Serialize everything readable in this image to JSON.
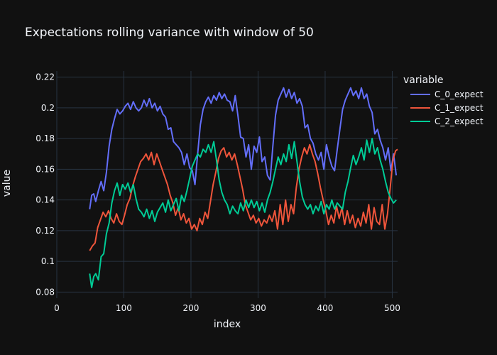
{
  "chart_data": {
    "type": "line",
    "title": "Expectations rolling variance with window of 50",
    "xlabel": "index",
    "ylabel": "value",
    "xlim": [
      0,
      508
    ],
    "ylim": [
      0.076,
      0.224
    ],
    "x_ticks": [
      0,
      100,
      200,
      300,
      400,
      500
    ],
    "y_ticks": [
      0.08,
      0.1,
      0.12,
      0.14,
      0.16,
      0.18,
      0.2,
      0.22
    ],
    "grid": true,
    "legend": {
      "title": "variable",
      "placement": "top-right",
      "entries": [
        "C_0_expect",
        "C_1_expect",
        "C_2_expect"
      ]
    },
    "colors": [
      "#636efa",
      "#ef553b",
      "#00cc96"
    ],
    "background": "#111111",
    "series": [
      {
        "name": "C_0_expect",
        "x": [
          49,
          52,
          55,
          58,
          62,
          66,
          70,
          74,
          78,
          82,
          86,
          90,
          94,
          98,
          102,
          106,
          110,
          114,
          118,
          122,
          126,
          130,
          134,
          138,
          142,
          146,
          150,
          154,
          158,
          162,
          166,
          170,
          174,
          178,
          182,
          186,
          190,
          194,
          198,
          202,
          206,
          210,
          214,
          218,
          222,
          226,
          230,
          234,
          238,
          242,
          246,
          250,
          254,
          258,
          262,
          266,
          270,
          274,
          278,
          282,
          286,
          290,
          294,
          298,
          302,
          306,
          310,
          314,
          318,
          322,
          326,
          330,
          334,
          338,
          342,
          346,
          350,
          354,
          358,
          362,
          366,
          370,
          374,
          378,
          382,
          386,
          390,
          394,
          398,
          402,
          406,
          410,
          414,
          418,
          422,
          426,
          430,
          434,
          438,
          442,
          446,
          450,
          454,
          458,
          462,
          466,
          470,
          474,
          478,
          482,
          486,
          490,
          494,
          498,
          502,
          506
        ],
        "values": [
          0.134,
          0.143,
          0.144,
          0.139,
          0.146,
          0.152,
          0.146,
          0.158,
          0.175,
          0.186,
          0.193,
          0.199,
          0.196,
          0.198,
          0.201,
          0.203,
          0.199,
          0.204,
          0.2,
          0.198,
          0.2,
          0.205,
          0.201,
          0.206,
          0.2,
          0.203,
          0.198,
          0.201,
          0.196,
          0.194,
          0.186,
          0.187,
          0.178,
          0.176,
          0.174,
          0.171,
          0.163,
          0.17,
          0.161,
          0.159,
          0.15,
          0.17,
          0.189,
          0.199,
          0.204,
          0.207,
          0.203,
          0.208,
          0.205,
          0.21,
          0.206,
          0.209,
          0.205,
          0.204,
          0.198,
          0.208,
          0.195,
          0.181,
          0.18,
          0.168,
          0.176,
          0.16,
          0.175,
          0.171,
          0.181,
          0.165,
          0.168,
          0.156,
          0.153,
          0.175,
          0.195,
          0.205,
          0.209,
          0.213,
          0.207,
          0.212,
          0.206,
          0.21,
          0.203,
          0.206,
          0.201,
          0.187,
          0.189,
          0.18,
          0.177,
          0.17,
          0.166,
          0.171,
          0.16,
          0.176,
          0.168,
          0.162,
          0.159,
          0.173,
          0.186,
          0.199,
          0.205,
          0.209,
          0.213,
          0.208,
          0.211,
          0.206,
          0.213,
          0.206,
          0.209,
          0.201,
          0.197,
          0.183,
          0.186,
          0.179,
          0.174,
          0.166,
          0.174,
          0.159,
          0.17,
          0.156
        ]
      },
      {
        "name": "C_1_expect",
        "x": [
          49,
          53,
          57,
          61,
          65,
          69,
          73,
          77,
          81,
          85,
          89,
          93,
          97,
          101,
          105,
          109,
          113,
          117,
          121,
          125,
          129,
          133,
          137,
          141,
          145,
          149,
          153,
          157,
          161,
          165,
          169,
          173,
          177,
          181,
          185,
          189,
          193,
          197,
          201,
          205,
          209,
          213,
          217,
          221,
          225,
          229,
          233,
          237,
          241,
          245,
          249,
          253,
          257,
          261,
          265,
          269,
          273,
          277,
          281,
          285,
          289,
          293,
          297,
          301,
          305,
          309,
          313,
          317,
          321,
          325,
          329,
          333,
          337,
          341,
          345,
          349,
          353,
          357,
          361,
          365,
          369,
          373,
          377,
          381,
          385,
          389,
          393,
          397,
          401,
          405,
          409,
          413,
          417,
          421,
          425,
          429,
          433,
          437,
          441,
          445,
          449,
          453,
          457,
          461,
          465,
          469,
          473,
          477,
          481,
          485,
          489,
          493,
          497,
          501,
          505,
          508
        ],
        "values": [
          0.107,
          0.11,
          0.112,
          0.122,
          0.127,
          0.132,
          0.129,
          0.133,
          0.128,
          0.125,
          0.131,
          0.126,
          0.124,
          0.13,
          0.137,
          0.141,
          0.149,
          0.155,
          0.16,
          0.165,
          0.167,
          0.17,
          0.166,
          0.171,
          0.163,
          0.17,
          0.165,
          0.16,
          0.155,
          0.15,
          0.143,
          0.138,
          0.13,
          0.135,
          0.127,
          0.131,
          0.125,
          0.128,
          0.121,
          0.124,
          0.12,
          0.128,
          0.124,
          0.132,
          0.128,
          0.139,
          0.15,
          0.158,
          0.167,
          0.172,
          0.174,
          0.168,
          0.171,
          0.166,
          0.17,
          0.163,
          0.155,
          0.147,
          0.137,
          0.132,
          0.127,
          0.13,
          0.125,
          0.128,
          0.123,
          0.127,
          0.125,
          0.13,
          0.126,
          0.133,
          0.121,
          0.137,
          0.124,
          0.14,
          0.126,
          0.137,
          0.131,
          0.148,
          0.16,
          0.168,
          0.174,
          0.17,
          0.176,
          0.17,
          0.165,
          0.157,
          0.148,
          0.14,
          0.133,
          0.124,
          0.13,
          0.125,
          0.136,
          0.128,
          0.135,
          0.124,
          0.133,
          0.125,
          0.13,
          0.122,
          0.128,
          0.123,
          0.132,
          0.125,
          0.137,
          0.121,
          0.135,
          0.126,
          0.124,
          0.137,
          0.121,
          0.131,
          0.148,
          0.166,
          0.172,
          0.173
        ]
      },
      {
        "name": "C_2_expect",
        "x": [
          49,
          52,
          55,
          58,
          62,
          66,
          70,
          74,
          78,
          82,
          86,
          90,
          94,
          98,
          102,
          106,
          110,
          114,
          118,
          122,
          126,
          130,
          134,
          138,
          142,
          146,
          150,
          154,
          158,
          162,
          166,
          170,
          174,
          178,
          182,
          186,
          190,
          194,
          198,
          202,
          206,
          210,
          214,
          218,
          222,
          226,
          230,
          234,
          238,
          242,
          246,
          250,
          254,
          258,
          262,
          266,
          270,
          274,
          278,
          282,
          286,
          290,
          294,
          298,
          302,
          306,
          310,
          314,
          318,
          322,
          326,
          330,
          334,
          338,
          342,
          346,
          350,
          354,
          358,
          362,
          366,
          370,
          374,
          378,
          382,
          386,
          390,
          394,
          398,
          402,
          406,
          410,
          414,
          418,
          422,
          426,
          430,
          434,
          438,
          442,
          446,
          450,
          454,
          458,
          462,
          466,
          470,
          474,
          478,
          482,
          486,
          490,
          494,
          498,
          502,
          506
        ],
        "values": [
          0.092,
          0.083,
          0.09,
          0.092,
          0.088,
          0.103,
          0.105,
          0.118,
          0.125,
          0.138,
          0.146,
          0.151,
          0.143,
          0.15,
          0.147,
          0.151,
          0.145,
          0.15,
          0.141,
          0.134,
          0.132,
          0.129,
          0.134,
          0.128,
          0.133,
          0.126,
          0.132,
          0.135,
          0.138,
          0.132,
          0.14,
          0.133,
          0.137,
          0.141,
          0.133,
          0.143,
          0.139,
          0.146,
          0.154,
          0.162,
          0.166,
          0.17,
          0.168,
          0.173,
          0.171,
          0.176,
          0.171,
          0.178,
          0.166,
          0.153,
          0.145,
          0.14,
          0.137,
          0.131,
          0.136,
          0.133,
          0.131,
          0.138,
          0.133,
          0.14,
          0.135,
          0.14,
          0.135,
          0.139,
          0.133,
          0.138,
          0.132,
          0.14,
          0.145,
          0.152,
          0.16,
          0.168,
          0.163,
          0.17,
          0.165,
          0.176,
          0.167,
          0.178,
          0.165,
          0.152,
          0.142,
          0.137,
          0.134,
          0.137,
          0.131,
          0.136,
          0.133,
          0.139,
          0.131,
          0.137,
          0.134,
          0.14,
          0.134,
          0.138,
          0.136,
          0.134,
          0.145,
          0.152,
          0.161,
          0.169,
          0.163,
          0.168,
          0.174,
          0.166,
          0.179,
          0.171,
          0.18,
          0.17,
          0.174,
          0.166,
          0.16,
          0.152,
          0.145,
          0.141,
          0.138,
          0.14
        ]
      }
    ]
  }
}
